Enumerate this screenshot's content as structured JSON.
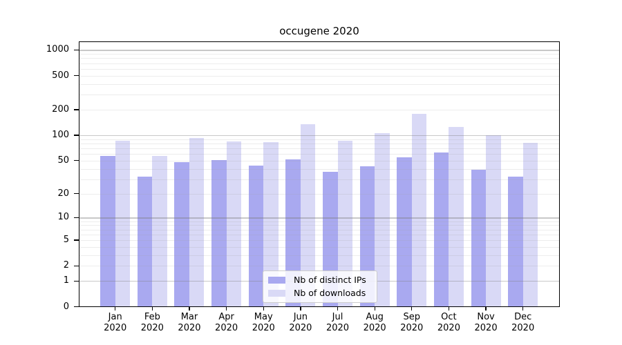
{
  "title": "occugene 2020",
  "legend": {
    "items": [
      {
        "label": "Nb of distinct IPs",
        "color": "#a9a9f0"
      },
      {
        "label": "Nb of downloads",
        "color": "#d9d9f6"
      }
    ]
  },
  "colors": {
    "distinct_ips_bar": "#a9a9f0",
    "downloads_bar": "#d9d9f6",
    "major_gridline": "#c6c6c6",
    "minor_gridline": "#ececec",
    "axis": "#000000"
  },
  "chart_data": {
    "type": "bar",
    "title": "occugene 2020",
    "categories": [
      "Jan",
      "Feb",
      "Mar",
      "Apr",
      "May",
      "Jun",
      "Jul",
      "Aug",
      "Sep",
      "Oct",
      "Nov",
      "Dec"
    ],
    "year_label": "2020",
    "series": [
      {
        "name": "Nb of distinct IPs",
        "color": "#a9a9f0",
        "values": [
          57,
          32,
          48,
          51,
          44,
          52,
          37,
          43,
          55,
          62,
          39,
          32
        ]
      },
      {
        "name": "Nb of downloads",
        "color": "#d9d9f6",
        "values": [
          86,
          57,
          93,
          84,
          83,
          135,
          86,
          105,
          180,
          124,
          100,
          82
        ]
      }
    ],
    "xlabel": "",
    "ylabel": "",
    "y_scale": "log10(value+1)",
    "y_ticks": [
      1000,
      500,
      200,
      100,
      50,
      20,
      10,
      5,
      2,
      1,
      0
    ],
    "ylim": [
      0,
      1260
    ],
    "grid": "on",
    "legend_position": "lower-center-inside"
  }
}
